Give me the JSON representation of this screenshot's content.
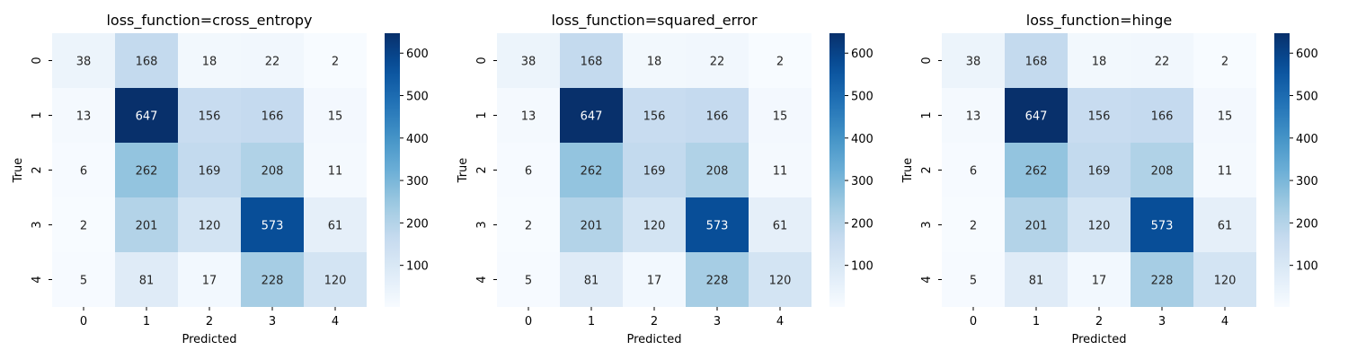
{
  "chart_data": [
    {
      "type": "heatmap",
      "title": "loss_function=cross_entropy",
      "xlabel": "Predicted",
      "ylabel": "True",
      "x_categories": [
        "0",
        "1",
        "2",
        "3",
        "4"
      ],
      "y_categories": [
        "0",
        "1",
        "2",
        "3",
        "4"
      ],
      "values": [
        [
          38,
          168,
          18,
          22,
          2
        ],
        [
          13,
          647,
          156,
          166,
          15
        ],
        [
          6,
          262,
          169,
          208,
          11
        ],
        [
          2,
          201,
          120,
          573,
          61
        ],
        [
          5,
          81,
          17,
          228,
          120
        ]
      ],
      "colormap": "Blues",
      "vmin": 2,
      "vmax": 647,
      "colorbar_ticks": [
        100,
        200,
        300,
        400,
        500,
        600
      ]
    },
    {
      "type": "heatmap",
      "title": "loss_function=squared_error",
      "xlabel": "Predicted",
      "ylabel": "True",
      "x_categories": [
        "0",
        "1",
        "2",
        "3",
        "4"
      ],
      "y_categories": [
        "0",
        "1",
        "2",
        "3",
        "4"
      ],
      "values": [
        [
          38,
          168,
          18,
          22,
          2
        ],
        [
          13,
          647,
          156,
          166,
          15
        ],
        [
          6,
          262,
          169,
          208,
          11
        ],
        [
          2,
          201,
          120,
          573,
          61
        ],
        [
          5,
          81,
          17,
          228,
          120
        ]
      ],
      "colormap": "Blues",
      "vmin": 2,
      "vmax": 647,
      "colorbar_ticks": [
        100,
        200,
        300,
        400,
        500,
        600
      ]
    },
    {
      "type": "heatmap",
      "title": "loss_function=hinge",
      "xlabel": "Predicted",
      "ylabel": "True",
      "x_categories": [
        "0",
        "1",
        "2",
        "3",
        "4"
      ],
      "y_categories": [
        "0",
        "1",
        "2",
        "3",
        "4"
      ],
      "values": [
        [
          38,
          168,
          18,
          22,
          2
        ],
        [
          13,
          647,
          156,
          166,
          15
        ],
        [
          6,
          262,
          169,
          208,
          11
        ],
        [
          2,
          201,
          120,
          573,
          61
        ],
        [
          5,
          81,
          17,
          228,
          120
        ]
      ],
      "colormap": "Blues",
      "vmin": 2,
      "vmax": 647,
      "colorbar_ticks": [
        100,
        200,
        300,
        400,
        500,
        600
      ]
    }
  ]
}
